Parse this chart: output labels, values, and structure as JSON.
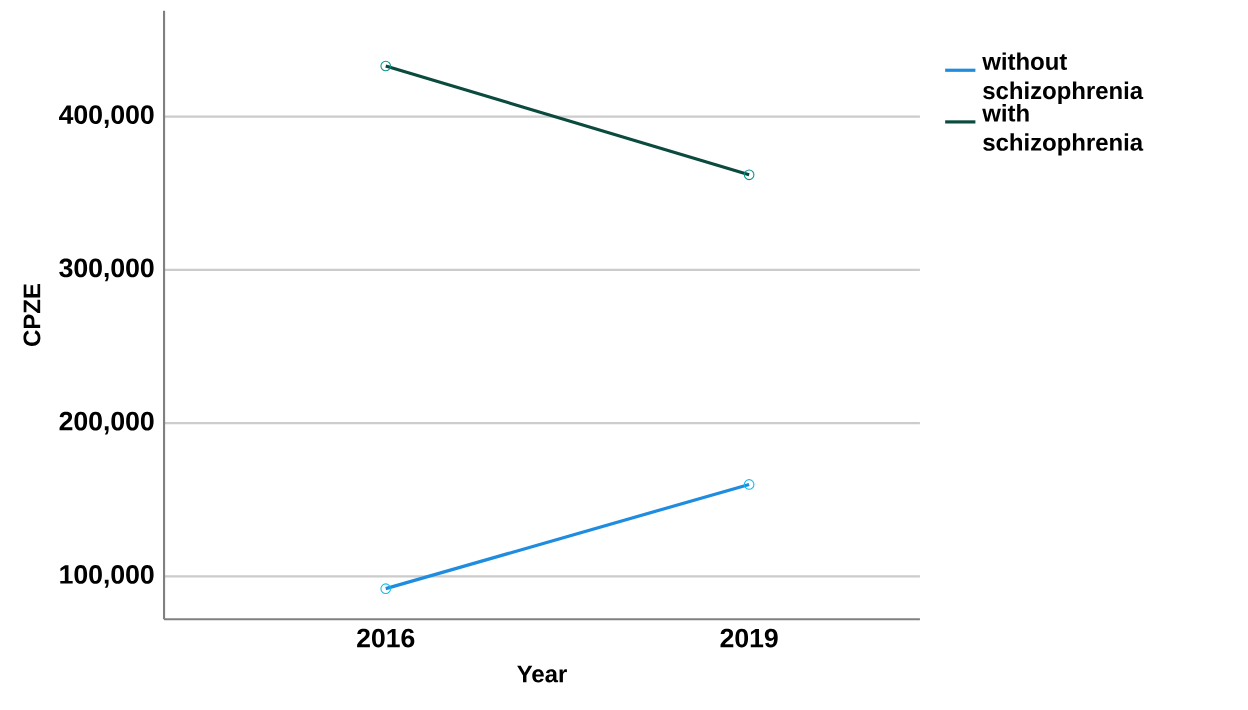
{
  "chart_data": {
    "type": "line",
    "xlabel": "Year",
    "ylabel": "CPZE",
    "categories": [
      "2016",
      "2019"
    ],
    "series": [
      {
        "name": "without schizophrenia",
        "color": "#1f8ce0",
        "values": [
          92000,
          160000
        ]
      },
      {
        "name": "with schizophrenia",
        "color": "#0b4a3f",
        "values": [
          433000,
          362000
        ]
      }
    ],
    "ylim": [
      72000,
      469000
    ],
    "yticks": [
      {
        "value": 100000,
        "label": "100,000"
      },
      {
        "value": 200000,
        "label": "200,000"
      },
      {
        "value": 300000,
        "label": "300,000"
      },
      {
        "value": 400000,
        "label": "400,000"
      }
    ],
    "grid": "y",
    "legend": "top right",
    "marker": "circle",
    "line_style": "solid"
  }
}
